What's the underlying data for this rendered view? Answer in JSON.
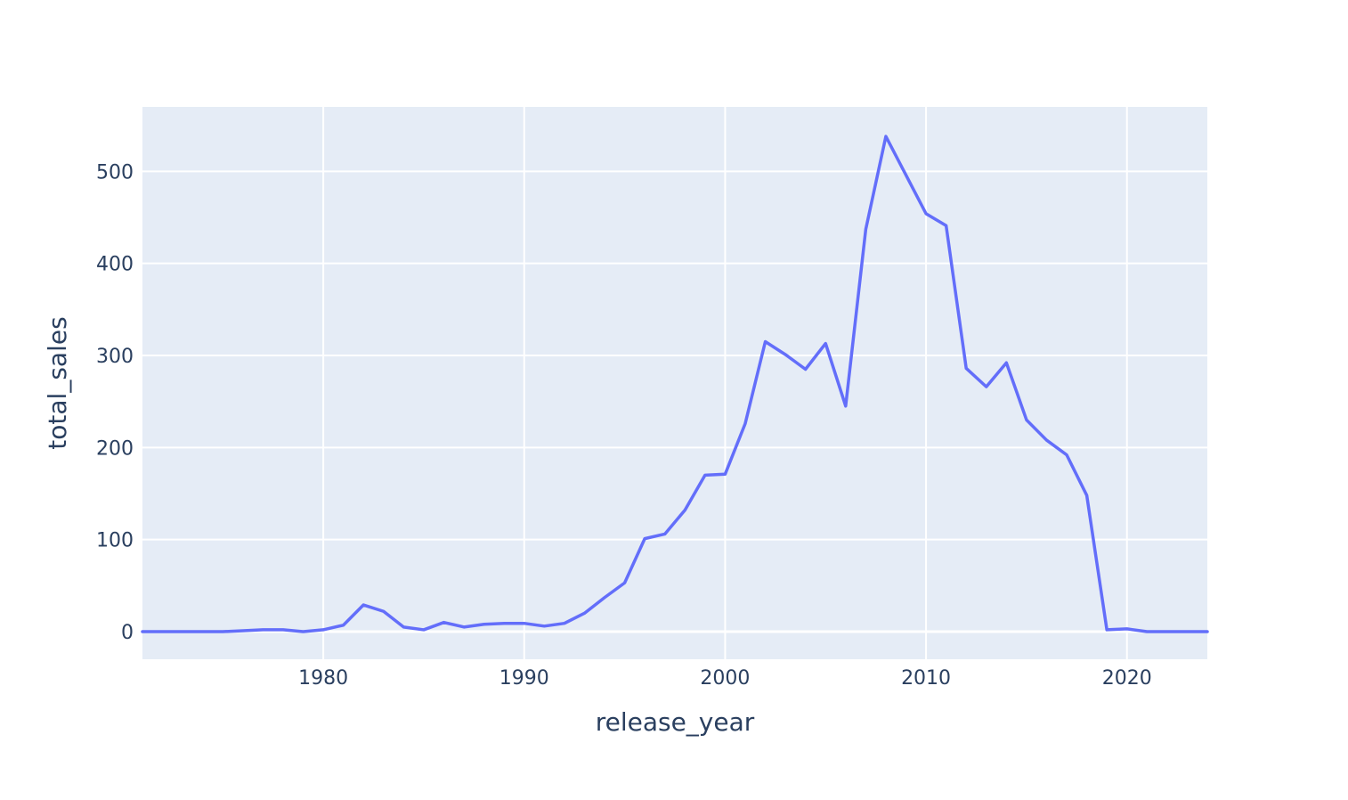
{
  "chart_data": {
    "type": "line",
    "title": "",
    "xlabel": "release_year",
    "ylabel": "total_sales",
    "xlim": [
      1971,
      2024
    ],
    "ylim": [
      -30,
      570
    ],
    "xticks": [
      1980,
      1990,
      2000,
      2010,
      2020
    ],
    "yticks": [
      0,
      100,
      200,
      300,
      400,
      500
    ],
    "grid": true,
    "legend": "none",
    "colors": {
      "line": "#636efa",
      "plot_bg": "#e5ecf6",
      "grid": "#ffffff",
      "text": "#2a3f5f"
    },
    "series": [
      {
        "x": [
          1971,
          1972,
          1973,
          1974,
          1975,
          1976,
          1977,
          1978,
          1979,
          1980,
          1981,
          1982,
          1983,
          1984,
          1985,
          1986,
          1987,
          1988,
          1989,
          1990,
          1991,
          1992,
          1993,
          1994,
          1995,
          1996,
          1997,
          1998,
          1999,
          2000,
          2001,
          2002,
          2003,
          2004,
          2005,
          2006,
          2007,
          2008,
          2009,
          2010,
          2011,
          2012,
          2013,
          2014,
          2015,
          2016,
          2017,
          2018,
          2019,
          2020,
          2021,
          2022,
          2023,
          2024
        ],
        "y": [
          0,
          0,
          0,
          0,
          0,
          1,
          2,
          2,
          0,
          2,
          7,
          29,
          22,
          5,
          2,
          10,
          5,
          8,
          9,
          9,
          6,
          9,
          20,
          37,
          53,
          101,
          106,
          132,
          170,
          171,
          226,
          315,
          301,
          285,
          313,
          245,
          437,
          538,
          496,
          454,
          441,
          286,
          266,
          292,
          230,
          208,
          192,
          148,
          2,
          3,
          0,
          0,
          0,
          0
        ]
      }
    ]
  }
}
